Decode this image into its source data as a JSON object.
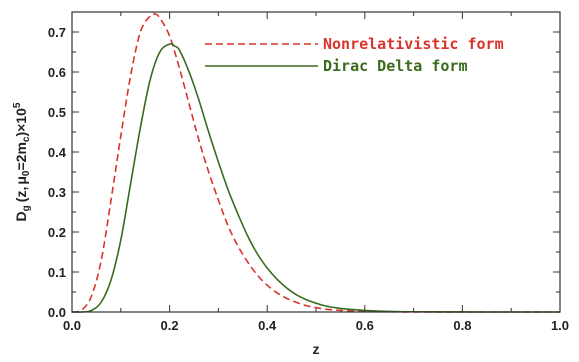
{
  "chart_data": {
    "type": "line",
    "title": "",
    "xlabel": "z",
    "ylabel": {
      "main": "D",
      "sub_g": "g",
      "args_open": "(z,",
      "mu": "μ",
      "sub_0": "0",
      "eq": "=2m",
      "sub_c": "c",
      "args_close": ")×10",
      "sup": "5"
    },
    "xlim": [
      0.0,
      1.0
    ],
    "ylim": [
      0.0,
      0.75
    ],
    "x_ticks": [
      "0.0",
      "0.2",
      "0.4",
      "0.6",
      "0.8",
      "1.0"
    ],
    "y_ticks": [
      "0.0",
      "0.1",
      "0.2",
      "0.3",
      "0.4",
      "0.5",
      "0.6",
      "0.7"
    ],
    "grid": false,
    "legend_position": "top-right",
    "series": [
      {
        "name": "Nonrelativistic form",
        "color": "#d9342b",
        "style": "dashed",
        "x": [
          0.0,
          0.02,
          0.04,
          0.06,
          0.08,
          0.1,
          0.12,
          0.14,
          0.16,
          0.17,
          0.18,
          0.2,
          0.22,
          0.24,
          0.26,
          0.28,
          0.3,
          0.32,
          0.34,
          0.36,
          0.38,
          0.4,
          0.42,
          0.44,
          0.46,
          0.48,
          0.5,
          0.52,
          0.55,
          0.6,
          0.65,
          0.7,
          0.8,
          0.9,
          1.0
        ],
        "y": [
          0.0,
          0.005,
          0.04,
          0.13,
          0.28,
          0.44,
          0.59,
          0.7,
          0.74,
          0.745,
          0.735,
          0.69,
          0.61,
          0.52,
          0.43,
          0.35,
          0.28,
          0.215,
          0.165,
          0.125,
          0.092,
          0.067,
          0.048,
          0.034,
          0.024,
          0.016,
          0.011,
          0.007,
          0.004,
          0.0015,
          0.0005,
          0.0002,
          0.0,
          0.0,
          0.0
        ]
      },
      {
        "name": "Dirac Delta form",
        "color": "#3a6b1c",
        "style": "solid",
        "x": [
          0.0,
          0.02,
          0.04,
          0.06,
          0.08,
          0.1,
          0.12,
          0.14,
          0.16,
          0.18,
          0.2,
          0.21,
          0.22,
          0.24,
          0.26,
          0.28,
          0.3,
          0.32,
          0.34,
          0.36,
          0.38,
          0.4,
          0.42,
          0.44,
          0.46,
          0.48,
          0.5,
          0.52,
          0.55,
          0.6,
          0.65,
          0.7,
          0.8,
          0.9,
          1.0
        ],
        "y": [
          0.0,
          0.0,
          0.004,
          0.025,
          0.08,
          0.18,
          0.32,
          0.46,
          0.58,
          0.65,
          0.67,
          0.665,
          0.655,
          0.6,
          0.53,
          0.45,
          0.375,
          0.305,
          0.245,
          0.19,
          0.145,
          0.11,
          0.082,
          0.06,
          0.043,
          0.031,
          0.022,
          0.015,
          0.009,
          0.004,
          0.0015,
          0.0006,
          0.0001,
          0.0,
          0.0
        ]
      }
    ]
  }
}
